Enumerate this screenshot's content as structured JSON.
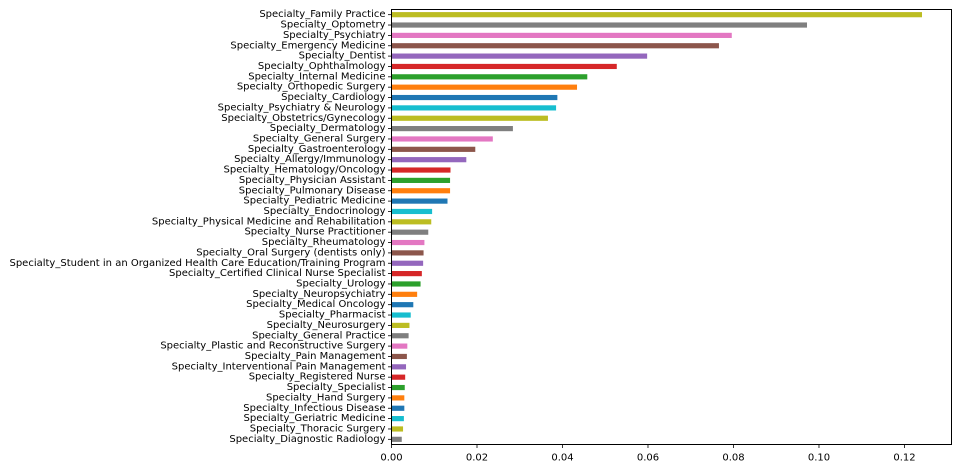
{
  "chart_data": {
    "type": "bar",
    "orientation": "horizontal",
    "title": "",
    "xlabel": "",
    "ylabel": "",
    "xlim": [
      0,
      0.131
    ],
    "x_ticks": [
      0.0,
      0.02,
      0.04,
      0.06,
      0.08,
      0.1,
      0.12
    ],
    "x_tick_labels": [
      "0.00",
      "0.02",
      "0.04",
      "0.06",
      "0.08",
      "0.10",
      "0.12"
    ],
    "grid": false,
    "legend": "none",
    "palette": [
      "#bcbd22",
      "#7f7f7f",
      "#e377c2",
      "#8c564b",
      "#9467bd",
      "#d62728",
      "#2ca02c",
      "#ff7f0e",
      "#1f77b4",
      "#17becf"
    ],
    "categories": [
      "Specialty_Family Practice",
      "Specialty_Optometry",
      "Specialty_Psychiatry",
      "Specialty_Emergency Medicine",
      "Specialty_Dentist",
      "Specialty_Ophthalmology",
      "Specialty_Internal Medicine",
      "Specialty_Orthopedic Surgery",
      "Specialty_Cardiology",
      "Specialty_Psychiatry & Neurology",
      "Specialty_Obstetrics/Gynecology",
      "Specialty_Dermatology",
      "Specialty_General Surgery",
      "Specialty_Gastroenterology",
      "Specialty_Allergy/Immunology",
      "Specialty_Hematology/Oncology",
      "Specialty_Physician Assistant",
      "Specialty_Pulmonary Disease",
      "Specialty_Pediatric Medicine",
      "Specialty_Endocrinology",
      "Specialty_Physical Medicine and Rehabilitation",
      "Specialty_Nurse Practitioner",
      "Specialty_Rheumatology",
      "Specialty_Oral Surgery (dentists only)",
      "Specialty_Student in an Organized Health Care Education/Training Program",
      "Specialty_Certified Clinical Nurse Specialist",
      "Specialty_Urology",
      "Specialty_Neuropsychiatry",
      "Specialty_Medical Oncology",
      "Specialty_Pharmacist",
      "Specialty_Neurosurgery",
      "Specialty_General Practice",
      "Specialty_Plastic and Reconstructive Surgery",
      "Specialty_Pain Management",
      "Specialty_Interventional Pain Management",
      "Specialty_Registered Nurse",
      "Specialty_Specialist",
      "Specialty_Hand Surgery",
      "Specialty_Infectious Disease",
      "Specialty_Geriatric Medicine",
      "Specialty_Thoracic Surgery",
      "Specialty_Diagnostic Radiology"
    ],
    "values": [
      0.1241,
      0.0972,
      0.0796,
      0.0766,
      0.0598,
      0.0527,
      0.0458,
      0.0434,
      0.0388,
      0.0385,
      0.0366,
      0.0284,
      0.0237,
      0.0196,
      0.0175,
      0.0138,
      0.0137,
      0.0137,
      0.0131,
      0.0095,
      0.0093,
      0.0086,
      0.0077,
      0.0075,
      0.0074,
      0.0071,
      0.0068,
      0.006,
      0.0051,
      0.0045,
      0.0042,
      0.004,
      0.0037,
      0.0036,
      0.0034,
      0.0032,
      0.0031,
      0.003,
      0.003,
      0.0029,
      0.0027,
      0.0024
    ]
  }
}
